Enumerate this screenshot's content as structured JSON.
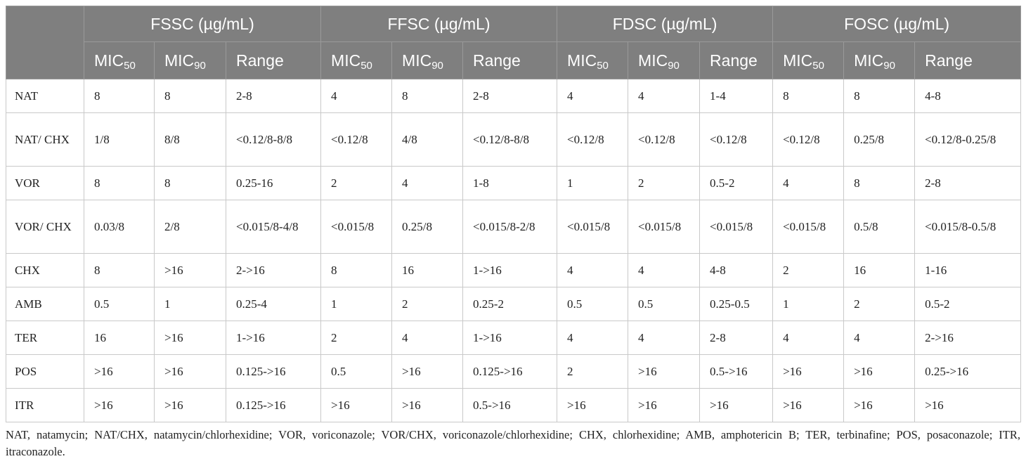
{
  "table": {
    "corner": "",
    "groups": [
      "FSSC (µg/mL)",
      "FFSC (µg/mL)",
      "FDSC (µg/mL)",
      "FOSC (µg/mL)"
    ],
    "subheaders": {
      "mic50_base": "MIC",
      "mic50_sub": "50",
      "mic90_base": "MIC",
      "mic90_sub": "90",
      "range": "Range"
    },
    "rows": [
      {
        "label": "NAT",
        "cells": [
          "8",
          "8",
          "2-8",
          "4",
          "8",
          "2-8",
          "4",
          "4",
          "1-4",
          "8",
          "8",
          "4-8"
        ]
      },
      {
        "label": "NAT/ CHX",
        "cells": [
          "1/8",
          "8/8",
          "<0.12/8-8/8",
          "<0.12/8",
          "4/8",
          "<0.12/8-8/8",
          "<0.12/8",
          "<0.12/8",
          "<0.12/8",
          "<0.12/8",
          "0.25/8",
          "<0.12/8-0.25/8"
        ]
      },
      {
        "label": "VOR",
        "cells": [
          "8",
          "8",
          "0.25-16",
          "2",
          "4",
          "1-8",
          "1",
          "2",
          "0.5-2",
          "4",
          "8",
          "2-8"
        ]
      },
      {
        "label": "VOR/ CHX",
        "cells": [
          "0.03/8",
          "2/8",
          "<0.015/8-4/8",
          "<0.015/8",
          "0.25/8",
          "<0.015/8-2/8",
          "<0.015/8",
          "<0.015/8",
          "<0.015/8",
          "<0.015/8",
          "0.5/8",
          "<0.015/8-0.5/8"
        ]
      },
      {
        "label": "CHX",
        "cells": [
          "8",
          ">16",
          "2->16",
          "8",
          "16",
          "1->16",
          "4",
          "4",
          "4-8",
          "2",
          "16",
          "1-16"
        ]
      },
      {
        "label": "AMB",
        "cells": [
          "0.5",
          "1",
          "0.25-4",
          "1",
          "2",
          "0.25-2",
          "0.5",
          "0.5",
          "0.25-0.5",
          "1",
          "2",
          "0.5-2"
        ]
      },
      {
        "label": "TER",
        "cells": [
          "16",
          ">16",
          "1->16",
          "2",
          "4",
          "1->16",
          "4",
          "4",
          "2-8",
          "4",
          "4",
          "2->16"
        ]
      },
      {
        "label": "POS",
        "cells": [
          ">16",
          ">16",
          "0.125->16",
          "0.5",
          ">16",
          "0.125->16",
          "2",
          ">16",
          "0.5->16",
          ">16",
          ">16",
          "0.25->16"
        ]
      },
      {
        "label": "ITR",
        "cells": [
          ">16",
          ">16",
          "0.125->16",
          ">16",
          ">16",
          "0.5->16",
          ">16",
          ">16",
          ">16",
          ">16",
          ">16",
          ">16"
        ]
      }
    ]
  },
  "footnote": "NAT, natamycin; NAT/CHX, natamycin/chlorhexidine; VOR, voriconazole; VOR/CHX, voriconazole/chlorhexidine; CHX, chlorhexidine; AMB, amphotericin B; TER, terbinafine; POS, posaconazole; ITR, itraconazole.",
  "colors": {
    "header_bg": "#7f7f7f",
    "header_text": "#ffffff",
    "grid": "#c9c9c9"
  }
}
